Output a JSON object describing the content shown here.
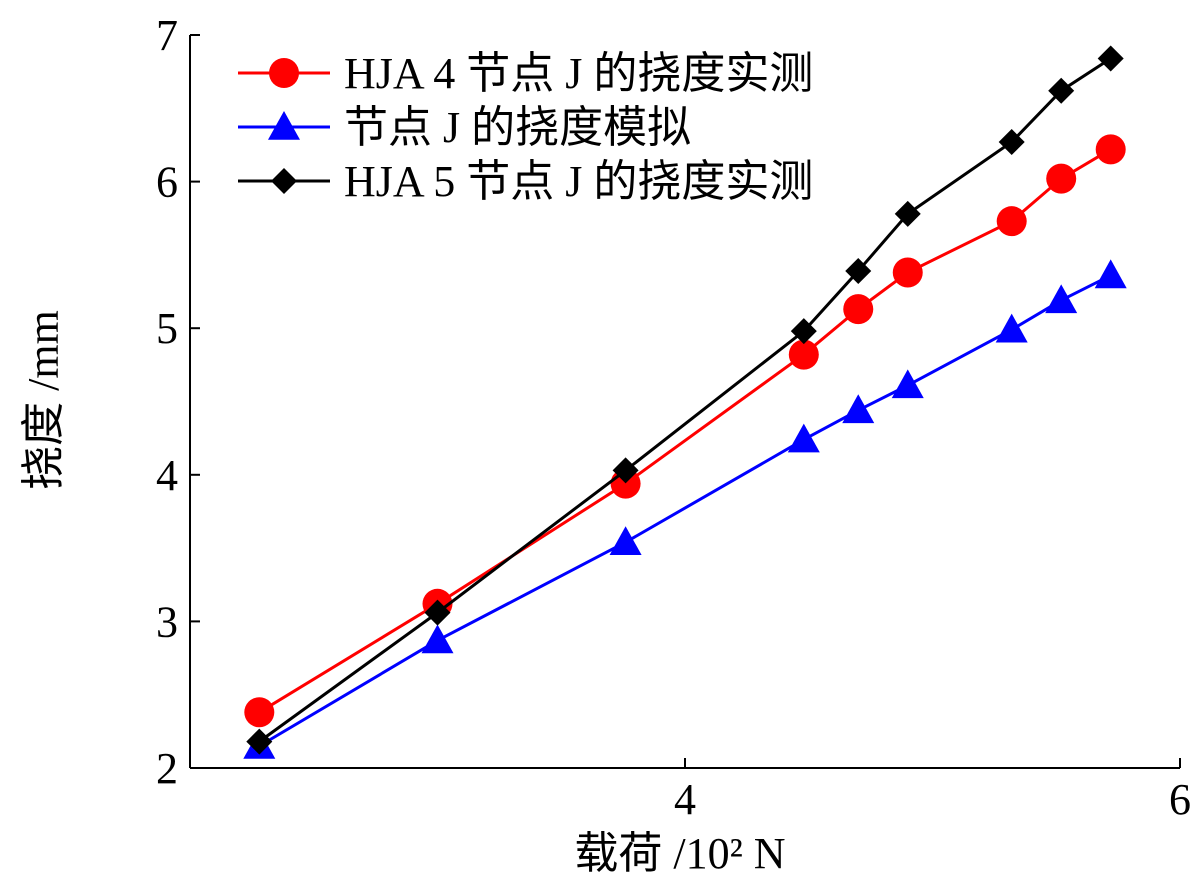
{
  "chart_data": {
    "type": "line",
    "title": "",
    "xlabel": "载荷 /10² N",
    "ylabel": "挠度 /mm",
    "xlim": [
      2,
      6
    ],
    "ylim": [
      2,
      7
    ],
    "x_ticks": [
      "4",
      "6"
    ],
    "y_ticks": [
      "2",
      "3",
      "4",
      "5",
      "6",
      "7"
    ],
    "grid": false,
    "legend_position": "top-left",
    "series": [
      {
        "name": "HJA 4 节点 J 的挠度实测",
        "color": "#ff0000",
        "marker": "circle",
        "x": [
          2.28,
          3.0,
          3.76,
          4.48,
          4.7,
          4.9,
          5.32,
          5.52,
          5.72
        ],
        "y": [
          2.38,
          3.12,
          3.94,
          4.82,
          5.13,
          5.38,
          5.73,
          6.02,
          6.22
        ]
      },
      {
        "name": "节点 J 的挠度模拟",
        "color": "#0000ff",
        "marker": "triangle",
        "x": [
          2.28,
          3.0,
          3.76,
          4.48,
          4.7,
          4.9,
          5.32,
          5.52,
          5.72
        ],
        "y": [
          2.15,
          2.87,
          3.54,
          4.24,
          4.44,
          4.61,
          4.99,
          5.19,
          5.36
        ]
      },
      {
        "name": "HJA 5 节点 J 的挠度实测",
        "color": "#000000",
        "marker": "diamond",
        "x": [
          2.28,
          3.0,
          3.76,
          4.48,
          4.7,
          4.9,
          5.32,
          5.52,
          5.72
        ],
        "y": [
          2.18,
          3.06,
          4.03,
          4.98,
          5.39,
          5.78,
          6.27,
          6.62,
          6.84
        ]
      }
    ]
  }
}
